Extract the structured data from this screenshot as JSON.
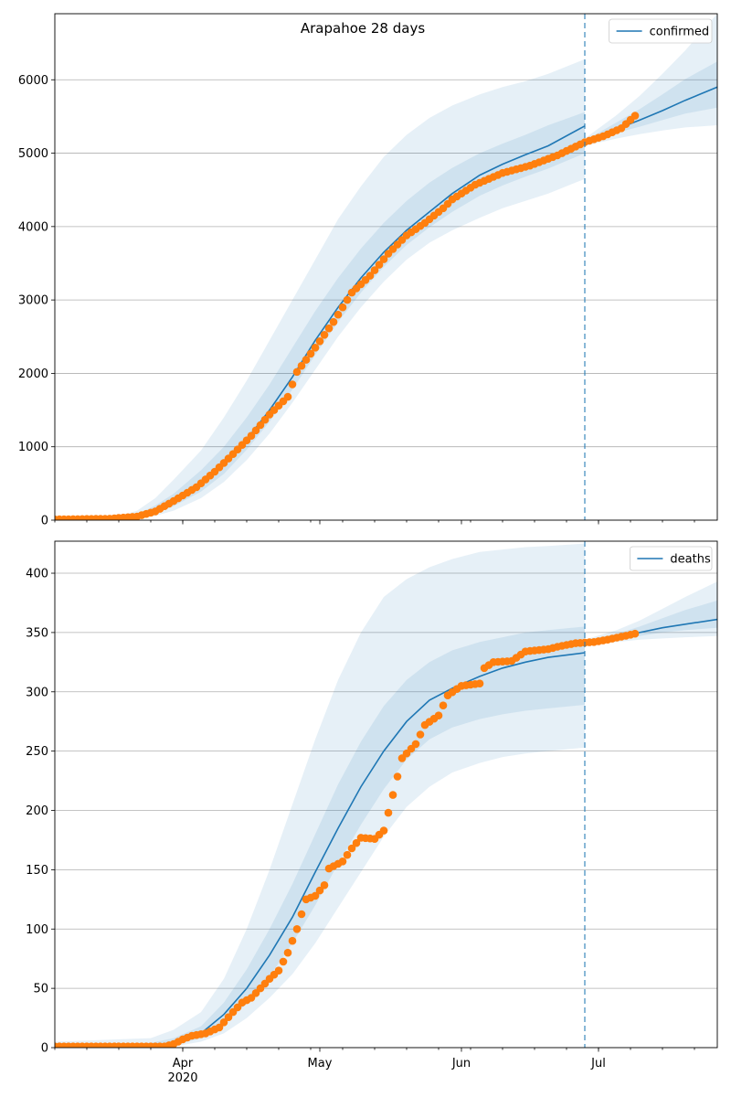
{
  "figure": {
    "title": "Arapahoe 28 days"
  },
  "colors": {
    "model": "#1f77b4",
    "observed": "#ff7f0e",
    "band": "#1f77b4",
    "grid": "#b0b0b0"
  },
  "chart_data": [
    {
      "type": "line",
      "ylabel": "",
      "xlabel": "",
      "x_range": [
        "2020-03-04",
        "2020-07-27"
      ],
      "ylim": [
        0,
        6900
      ],
      "yticks": [
        0,
        1000,
        2000,
        3000,
        4000,
        5000,
        6000
      ],
      "grid": "horizontal",
      "legend": {
        "position": "top-right",
        "entries": [
          "confirmed"
        ]
      },
      "forecast_start": "2020-06-28",
      "xticks": [
        {
          "date": "2020-04-01",
          "label": "Apr",
          "sublabel": "2020"
        },
        {
          "date": "2020-05-01",
          "label": "May",
          "sublabel": ""
        },
        {
          "date": "2020-06-01",
          "label": "Jun",
          "sublabel": ""
        },
        {
          "date": "2020-07-01",
          "label": "Jul",
          "sublabel": ""
        }
      ],
      "model_median": [
        [
          "2020-03-04",
          0
        ],
        [
          "2020-03-12",
          3
        ],
        [
          "2020-03-18",
          15
        ],
        [
          "2020-03-22",
          50
        ],
        [
          "2020-03-26",
          130
        ],
        [
          "2020-03-30",
          250
        ],
        [
          "2020-04-05",
          480
        ],
        [
          "2020-04-10",
          750
        ],
        [
          "2020-04-15",
          1100
        ],
        [
          "2020-04-20",
          1500
        ],
        [
          "2020-04-25",
          1950
        ],
        [
          "2020-04-30",
          2450
        ],
        [
          "2020-05-05",
          2900
        ],
        [
          "2020-05-10",
          3300
        ],
        [
          "2020-05-15",
          3650
        ],
        [
          "2020-05-20",
          3950
        ],
        [
          "2020-05-25",
          4200
        ],
        [
          "2020-05-30",
          4450
        ],
        [
          "2020-06-05",
          4700
        ],
        [
          "2020-06-10",
          4850
        ],
        [
          "2020-06-15",
          4980
        ],
        [
          "2020-06-20",
          5100
        ],
        [
          "2020-06-28",
          5370
        ]
      ],
      "forecast_median": [
        [
          "2020-06-28",
          5150
        ],
        [
          "2020-07-05",
          5330
        ],
        [
          "2020-07-10",
          5450
        ],
        [
          "2020-07-15",
          5580
        ],
        [
          "2020-07-20",
          5720
        ],
        [
          "2020-07-27",
          5900
        ]
      ],
      "band_outer": {
        "dates": [
          "2020-03-04",
          "2020-03-12",
          "2020-03-18",
          "2020-03-22",
          "2020-03-26",
          "2020-03-30",
          "2020-04-05",
          "2020-04-10",
          "2020-04-15",
          "2020-04-20",
          "2020-04-25",
          "2020-04-30",
          "2020-05-05",
          "2020-05-10",
          "2020-05-15",
          "2020-05-20",
          "2020-05-25",
          "2020-05-30",
          "2020-06-05",
          "2020-06-10",
          "2020-06-15",
          "2020-06-20",
          "2020-06-28"
        ],
        "lower": [
          0,
          0,
          5,
          20,
          60,
          130,
          300,
          520,
          820,
          1180,
          1600,
          2050,
          2500,
          2900,
          3250,
          3550,
          3780,
          3950,
          4120,
          4250,
          4350,
          4450,
          4650
        ],
        "upper": [
          10,
          25,
          55,
          130,
          300,
          550,
          950,
          1400,
          1900,
          2450,
          3000,
          3550,
          4100,
          4550,
          4950,
          5250,
          5480,
          5650,
          5800,
          5900,
          5980,
          6080,
          6280
        ]
      },
      "band_inner": {
        "dates": [
          "2020-03-04",
          "2020-03-12",
          "2020-03-18",
          "2020-03-22",
          "2020-03-26",
          "2020-03-30",
          "2020-04-05",
          "2020-04-10",
          "2020-04-15",
          "2020-04-20",
          "2020-04-25",
          "2020-04-30",
          "2020-05-05",
          "2020-05-10",
          "2020-05-15",
          "2020-05-20",
          "2020-05-25",
          "2020-05-30",
          "2020-06-05",
          "2020-06-10",
          "2020-06-15",
          "2020-06-20",
          "2020-06-28"
        ],
        "lower": [
          0,
          1,
          10,
          35,
          90,
          190,
          390,
          630,
          960,
          1340,
          1780,
          2250,
          2700,
          3100,
          3450,
          3750,
          3990,
          4200,
          4420,
          4560,
          4680,
          4790,
          5000
        ],
        "upper": [
          4,
          10,
          30,
          80,
          200,
          360,
          680,
          1000,
          1400,
          1850,
          2350,
          2850,
          3300,
          3700,
          4050,
          4350,
          4600,
          4800,
          5000,
          5130,
          5250,
          5380,
          5560
        ]
      },
      "forecast_band_outer": {
        "dates": [
          "2020-06-28",
          "2020-07-05",
          "2020-07-10",
          "2020-07-15",
          "2020-07-20",
          "2020-07-27"
        ],
        "lower": [
          5100,
          5200,
          5260,
          5310,
          5350,
          5380
        ],
        "upper": [
          5200,
          5520,
          5780,
          6080,
          6400,
          6900
        ]
      },
      "forecast_band_inner": {
        "dates": [
          "2020-06-28",
          "2020-07-05",
          "2020-07-10",
          "2020-07-15",
          "2020-07-20",
          "2020-07-27"
        ],
        "lower": [
          5130,
          5280,
          5360,
          5450,
          5540,
          5620
        ],
        "upper": [
          5170,
          5420,
          5600,
          5800,
          6010,
          6250
        ]
      },
      "observed_knots": [
        [
          "2020-03-04",
          10
        ],
        [
          "2020-03-16",
          20
        ],
        [
          "2020-03-22",
          50
        ],
        [
          "2020-03-26",
          120
        ],
        [
          "2020-03-30",
          260
        ],
        [
          "2020-04-04",
          450
        ],
        [
          "2020-04-08",
          660
        ],
        [
          "2020-04-12",
          900
        ],
        [
          "2020-04-16",
          1150
        ],
        [
          "2020-04-20",
          1440
        ],
        [
          "2020-04-24",
          1680
        ],
        [
          "2020-04-26",
          2020
        ],
        [
          "2020-04-30",
          2350
        ],
        [
          "2020-05-04",
          2700
        ],
        [
          "2020-05-08",
          3100
        ],
        [
          "2020-05-12",
          3330
        ],
        [
          "2020-05-16",
          3630
        ],
        [
          "2020-05-20",
          3880
        ],
        [
          "2020-05-24",
          4050
        ],
        [
          "2020-05-28",
          4250
        ],
        [
          "2020-05-30",
          4370
        ],
        [
          "2020-06-04",
          4570
        ],
        [
          "2020-06-10",
          4730
        ],
        [
          "2020-06-16",
          4830
        ],
        [
          "2020-06-22",
          4970
        ],
        [
          "2020-06-28",
          5150
        ],
        [
          "2020-07-02",
          5230
        ],
        [
          "2020-07-06",
          5340
        ],
        [
          "2020-07-09",
          5510
        ]
      ]
    },
    {
      "type": "line",
      "ylabel": "",
      "xlabel": "",
      "x_range": [
        "2020-03-04",
        "2020-07-27"
      ],
      "ylim": [
        0,
        427
      ],
      "yticks": [
        0,
        50,
        100,
        150,
        200,
        250,
        300,
        350,
        400
      ],
      "grid": "horizontal",
      "legend": {
        "position": "top-right",
        "entries": [
          "deaths"
        ]
      },
      "forecast_start": "2020-06-28",
      "xticks": [
        {
          "date": "2020-04-01",
          "label": "Apr",
          "sublabel": "2020"
        },
        {
          "date": "2020-05-01",
          "label": "May",
          "sublabel": ""
        },
        {
          "date": "2020-06-01",
          "label": "Jun",
          "sublabel": ""
        },
        {
          "date": "2020-07-01",
          "label": "Jul",
          "sublabel": ""
        }
      ],
      "model_median": [
        [
          "2020-03-04",
          0
        ],
        [
          "2020-03-25",
          1
        ],
        [
          "2020-03-30",
          4
        ],
        [
          "2020-04-05",
          12
        ],
        [
          "2020-04-10",
          28
        ],
        [
          "2020-04-15",
          50
        ],
        [
          "2020-04-20",
          78
        ],
        [
          "2020-04-25",
          110
        ],
        [
          "2020-04-30",
          148
        ],
        [
          "2020-05-05",
          185
        ],
        [
          "2020-05-10",
          220
        ],
        [
          "2020-05-15",
          250
        ],
        [
          "2020-05-20",
          275
        ],
        [
          "2020-05-25",
          293
        ],
        [
          "2020-05-30",
          303
        ],
        [
          "2020-06-05",
          313
        ],
        [
          "2020-06-10",
          320
        ],
        [
          "2020-06-15",
          325
        ],
        [
          "2020-06-20",
          329
        ],
        [
          "2020-06-28",
          333
        ]
      ],
      "forecast_median": [
        [
          "2020-06-28",
          342
        ],
        [
          "2020-07-05",
          346
        ],
        [
          "2020-07-10",
          350
        ],
        [
          "2020-07-15",
          354
        ],
        [
          "2020-07-20",
          357
        ],
        [
          "2020-07-27",
          361
        ]
      ],
      "band_outer": {
        "dates": [
          "2020-03-04",
          "2020-03-25",
          "2020-03-30",
          "2020-04-05",
          "2020-04-10",
          "2020-04-15",
          "2020-04-20",
          "2020-04-25",
          "2020-04-30",
          "2020-05-05",
          "2020-05-10",
          "2020-05-15",
          "2020-05-20",
          "2020-05-25",
          "2020-05-30",
          "2020-06-05",
          "2020-06-10",
          "2020-06-15",
          "2020-06-20",
          "2020-06-28"
        ],
        "lower": [
          0,
          0,
          1,
          5,
          12,
          25,
          42,
          62,
          88,
          118,
          148,
          178,
          203,
          220,
          232,
          240,
          245,
          248,
          250,
          253
        ],
        "upper": [
          5,
          8,
          15,
          30,
          58,
          100,
          150,
          205,
          260,
          310,
          350,
          380,
          395,
          405,
          412,
          418,
          420,
          422,
          423,
          425
        ]
      },
      "band_inner": {
        "dates": [
          "2020-03-04",
          "2020-03-25",
          "2020-03-30",
          "2020-04-05",
          "2020-04-10",
          "2020-04-15",
          "2020-04-20",
          "2020-04-25",
          "2020-04-30",
          "2020-05-05",
          "2020-05-10",
          "2020-05-15",
          "2020-05-20",
          "2020-05-25",
          "2020-05-30",
          "2020-06-05",
          "2020-06-10",
          "2020-06-15",
          "2020-06-20",
          "2020-06-28"
        ],
        "lower": [
          0,
          0,
          2,
          8,
          20,
          37,
          60,
          88,
          120,
          155,
          188,
          218,
          243,
          260,
          270,
          277,
          281,
          284,
          286,
          289
        ],
        "upper": [
          2,
          4,
          8,
          18,
          38,
          66,
          100,
          138,
          180,
          222,
          258,
          288,
          310,
          325,
          335,
          342,
          346,
          350,
          352,
          355
        ]
      },
      "forecast_band_outer": {
        "dates": [
          "2020-06-28",
          "2020-07-05",
          "2020-07-10",
          "2020-07-15",
          "2020-07-20",
          "2020-07-27"
        ],
        "lower": [
          340,
          342,
          344,
          345,
          346,
          347
        ],
        "upper": [
          344,
          352,
          360,
          370,
          380,
          393
        ]
      },
      "forecast_band_inner": {
        "dates": [
          "2020-06-28",
          "2020-07-05",
          "2020-07-10",
          "2020-07-15",
          "2020-07-20",
          "2020-07-27"
        ],
        "lower": [
          341,
          344,
          347,
          350,
          352,
          354
        ],
        "upper": [
          343,
          349,
          355,
          362,
          369,
          377
        ]
      },
      "observed_knots": [
        [
          "2020-03-04",
          1
        ],
        [
          "2020-03-28",
          1
        ],
        [
          "2020-03-30",
          3
        ],
        [
          "2020-04-01",
          7
        ],
        [
          "2020-04-03",
          10
        ],
        [
          "2020-04-06",
          12
        ],
        [
          "2020-04-09",
          17
        ],
        [
          "2020-04-12",
          30
        ],
        [
          "2020-04-14",
          38
        ],
        [
          "2020-04-16",
          42
        ],
        [
          "2020-04-20",
          58
        ],
        [
          "2020-04-22",
          65
        ],
        [
          "2020-04-24",
          80
        ],
        [
          "2020-04-26",
          100
        ],
        [
          "2020-04-28",
          125
        ],
        [
          "2020-04-30",
          128
        ],
        [
          "2020-05-02",
          137
        ],
        [
          "2020-05-03",
          151
        ],
        [
          "2020-05-06",
          157
        ],
        [
          "2020-05-08",
          168
        ],
        [
          "2020-05-10",
          177
        ],
        [
          "2020-05-13",
          176
        ],
        [
          "2020-05-15",
          183
        ],
        [
          "2020-05-17",
          213
        ],
        [
          "2020-05-19",
          244
        ],
        [
          "2020-05-22",
          256
        ],
        [
          "2020-05-24",
          272
        ],
        [
          "2020-05-27",
          280
        ],
        [
          "2020-05-29",
          297
        ],
        [
          "2020-06-01",
          305
        ],
        [
          "2020-06-05",
          307
        ],
        [
          "2020-06-06",
          320
        ],
        [
          "2020-06-08",
          325
        ],
        [
          "2020-06-12",
          326
        ],
        [
          "2020-06-15",
          334
        ],
        [
          "2020-06-20",
          336
        ],
        [
          "2020-06-22",
          338
        ],
        [
          "2020-06-26",
          341
        ],
        [
          "2020-06-30",
          342
        ],
        [
          "2020-07-03",
          344
        ],
        [
          "2020-07-09",
          349
        ]
      ]
    }
  ]
}
